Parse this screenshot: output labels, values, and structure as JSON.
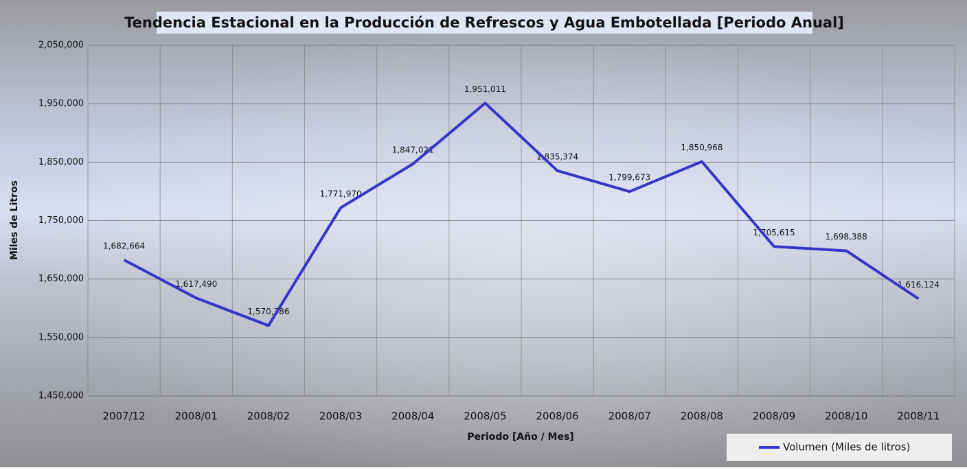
{
  "chart_data": {
    "type": "line",
    "title": "Tendencia Estacional en la Producción de Refrescos y Agua Embotellada [Periodo Anual]",
    "x_label": "Periodo  [Año / Mes]",
    "y_label": "Miles de Litros",
    "categories": [
      "2007/12",
      "2008/01",
      "2008/02",
      "2008/03",
      "2008/04",
      "2008/05",
      "2008/06",
      "2008/07",
      "2008/08",
      "2008/09",
      "2008/10",
      "2008/11"
    ],
    "series": [
      {
        "name": "Volumen (Miles de litros)",
        "color": "#3535c8",
        "values": [
          1682664,
          1617490,
          1570386,
          1771970,
          1847021,
          1951011,
          1835374,
          1799673,
          1850968,
          1705615,
          1698388,
          1616124
        ],
        "value_labels": [
          "1,682,664",
          "1,617,490",
          "1,570,386",
          "1,771,970",
          "1,847,021",
          "1,951,011",
          "1,835,374",
          "1,799,673",
          "1,850,968",
          "1,705,615",
          "1,698,388",
          "1,616,124"
        ]
      }
    ],
    "ylim": [
      1450000,
      2050000
    ],
    "yticks": [
      {
        "value": 1450000,
        "label": "1,450,000"
      },
      {
        "value": 1550000,
        "label": "1,550,000"
      },
      {
        "value": 1650000,
        "label": "1,650,000"
      },
      {
        "value": 1750000,
        "label": "1,750,000"
      },
      {
        "value": 1850000,
        "label": "1,850,000"
      },
      {
        "value": 1950000,
        "label": "1,950,000"
      },
      {
        "value": 2050000,
        "label": "2,050,000"
      }
    ],
    "grid": true,
    "legend": "bottom-right"
  }
}
